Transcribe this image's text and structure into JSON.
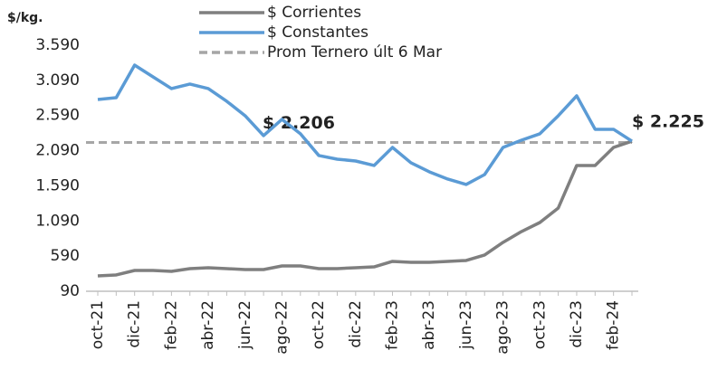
{
  "chart_data": {
    "type": "line",
    "y_label": "$/kg.",
    "categories": [
      "oct-21",
      null,
      "dic-21",
      null,
      "feb-22",
      null,
      "abr-22",
      null,
      "jun-22",
      null,
      "ago-22",
      null,
      "oct-22",
      null,
      "dic-22",
      null,
      "feb-23",
      null,
      "abr-23",
      null,
      "jun-23",
      null,
      "ago-23",
      null,
      "oct-23",
      null,
      "dic-23",
      null,
      "feb-24",
      null
    ],
    "series": [
      {
        "name": "$ Corrientes",
        "color": "#7f7f7f",
        "values": [
          309,
          322,
          386,
          386,
          373,
          412,
          425,
          412,
          399,
          399,
          450,
          450,
          412,
          412,
          425,
          437,
          515,
          502,
          502,
          515,
          528,
          605,
          785,
          939,
          1068,
          1274,
          1879,
          1879,
          2136,
          2225
        ]
      },
      {
        "name": "$ Constantes",
        "color": "#5b9bd5",
        "values": [
          2818,
          2844,
          3307,
          3140,
          2973,
          3037,
          2973,
          2793,
          2587,
          2304,
          2535,
          2330,
          2021,
          1969,
          1943,
          1879,
          2136,
          1918,
          1789,
          1686,
          1609,
          1750,
          2136,
          2239,
          2330,
          2587,
          2870,
          2394,
          2394,
          2225
        ],
        "value_labels": [
          null,
          null,
          null,
          null,
          null,
          null,
          null,
          null,
          null,
          null,
          null,
          null,
          null,
          null,
          null,
          null,
          null,
          null,
          null,
          null,
          null,
          null,
          null,
          null,
          null,
          null,
          null,
          null,
          null,
          "$ 2.225"
        ]
      }
    ],
    "reference_line": {
      "name": "Prom Ternero últ 6 Mar",
      "value": 2206,
      "label": "$ 2.206",
      "color": "#a6a6a6",
      "dashed": true
    },
    "ylim": [
      90,
      3590
    ],
    "yticks": [
      90,
      590,
      {
        "value": 1090,
        "label": "1.090"
      },
      {
        "value": 1590,
        "label": "1.590"
      },
      {
        "value": 2090,
        "label": "2.090"
      },
      {
        "value": 2590,
        "label": "2.590"
      },
      {
        "value": 3090,
        "label": "3.090"
      },
      {
        "value": 3590,
        "label": "3.590"
      }
    ],
    "grid": false
  }
}
